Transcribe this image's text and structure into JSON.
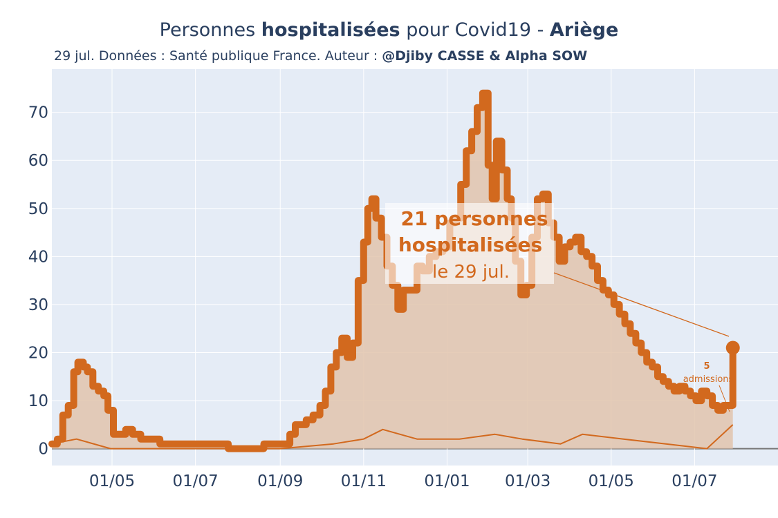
{
  "header": {
    "title_pre": "Personnes ",
    "title_bold1": "hospitalisées",
    "title_mid": " pour Covid19 - ",
    "title_bold2": "Ariège",
    "subtitle_pre": "29 jul. Données : Santé publique France. Auteur : ",
    "subtitle_author": "@Djiby CASSE & Alpha SOW"
  },
  "annotation": {
    "line1": "21 personnes",
    "line2": "hospitalisées",
    "line3": "le 29 jul.",
    "admissions_value": "5",
    "admissions_label": "admissions"
  },
  "colors": {
    "accent": "#d2691e",
    "fill": "#e2c4ad",
    "plot_bg": "#e5ecf6",
    "text": "#2a3f5f"
  },
  "chart_data": {
    "type": "area",
    "title": "Personnes hospitalisées pour Covid19 - Ariège",
    "x_ticks": [
      "01/05",
      "01/07",
      "01/09",
      "01/11",
      "01/01",
      "01/03",
      "01/05",
      "01/07"
    ],
    "y_ticks": [
      0,
      10,
      20,
      30,
      40,
      50,
      60,
      70
    ],
    "ylim": [
      -3.5,
      79
    ],
    "xlim": [
      "2020-03-18",
      "2021-08-31"
    ],
    "grid": true,
    "series": [
      {
        "name": "hospitalisées",
        "x": [
          "2020-03-18",
          "2020-03-22",
          "2020-03-26",
          "2020-03-30",
          "2020-04-03",
          "2020-04-06",
          "2020-04-10",
          "2020-04-13",
          "2020-04-17",
          "2020-04-21",
          "2020-04-25",
          "2020-04-28",
          "2020-05-02",
          "2020-05-06",
          "2020-05-11",
          "2020-05-16",
          "2020-05-22",
          "2020-05-26",
          "2020-05-30",
          "2020-06-05",
          "2020-06-15",
          "2020-06-25",
          "2020-07-10",
          "2020-07-25",
          "2020-08-05",
          "2020-08-20",
          "2020-09-01",
          "2020-09-08",
          "2020-09-12",
          "2020-09-16",
          "2020-09-20",
          "2020-09-25",
          "2020-09-30",
          "2020-10-04",
          "2020-10-08",
          "2020-10-12",
          "2020-10-16",
          "2020-10-20",
          "2020-10-24",
          "2020-10-28",
          "2020-11-01",
          "2020-11-04",
          "2020-11-07",
          "2020-11-10",
          "2020-11-14",
          "2020-11-18",
          "2020-11-22",
          "2020-11-26",
          "2020-11-30",
          "2020-12-05",
          "2020-12-10",
          "2020-12-14",
          "2020-12-19",
          "2020-12-24",
          "2020-12-29",
          "2021-01-03",
          "2021-01-07",
          "2021-01-11",
          "2021-01-15",
          "2021-01-19",
          "2021-01-23",
          "2021-01-27",
          "2021-01-31",
          "2021-02-03",
          "2021-02-06",
          "2021-02-10",
          "2021-02-14",
          "2021-02-17",
          "2021-02-20",
          "2021-02-24",
          "2021-02-28",
          "2021-03-04",
          "2021-03-08",
          "2021-03-12",
          "2021-03-16",
          "2021-03-20",
          "2021-03-24",
          "2021-03-28",
          "2021-04-01",
          "2021-04-05",
          "2021-04-09",
          "2021-04-13",
          "2021-04-17",
          "2021-04-21",
          "2021-04-25",
          "2021-04-29",
          "2021-05-03",
          "2021-05-07",
          "2021-05-11",
          "2021-05-15",
          "2021-05-19",
          "2021-05-23",
          "2021-05-27",
          "2021-05-31",
          "2021-06-04",
          "2021-06-08",
          "2021-06-12",
          "2021-06-16",
          "2021-06-20",
          "2021-06-24",
          "2021-06-28",
          "2021-07-02",
          "2021-07-06",
          "2021-07-10",
          "2021-07-14",
          "2021-07-18",
          "2021-07-22",
          "2021-07-26",
          "2021-07-29"
        ],
        "y": [
          1,
          2,
          7,
          9,
          16,
          18,
          17,
          16,
          13,
          12,
          11,
          8,
          3,
          3,
          4,
          3,
          2,
          2,
          2,
          1,
          1,
          1,
          1,
          0,
          0,
          1,
          1,
          3,
          5,
          5,
          6,
          7,
          9,
          12,
          17,
          20,
          23,
          19,
          22,
          35,
          43,
          50,
          52,
          48,
          44,
          38,
          34,
          29,
          33,
          33,
          38,
          37,
          40,
          41,
          42,
          47,
          48,
          55,
          62,
          66,
          71,
          74,
          59,
          52,
          64,
          58,
          52,
          48,
          39,
          32,
          34,
          44,
          52,
          53,
          47,
          44,
          39,
          42,
          43,
          44,
          41,
          40,
          38,
          35,
          33,
          32,
          30,
          28,
          26,
          24,
          22,
          20,
          18,
          17,
          15,
          14,
          13,
          12,
          13,
          12,
          11,
          10,
          12,
          11,
          9,
          8,
          9,
          9,
          21
        ]
      },
      {
        "name": "admissions",
        "x": [
          "2020-03-18",
          "2020-04-05",
          "2020-04-30",
          "2020-06-01",
          "2020-09-01",
          "2020-10-10",
          "2020-11-01",
          "2020-11-15",
          "2020-12-10",
          "2021-01-10",
          "2021-02-05",
          "2021-02-25",
          "2021-03-25",
          "2021-04-10",
          "2021-05-10",
          "2021-06-10",
          "2021-07-10",
          "2021-07-29"
        ],
        "y": [
          1,
          2,
          0,
          0,
          0,
          1,
          2,
          4,
          2,
          2,
          3,
          2,
          1,
          3,
          2,
          1,
          0,
          5
        ]
      }
    ]
  }
}
